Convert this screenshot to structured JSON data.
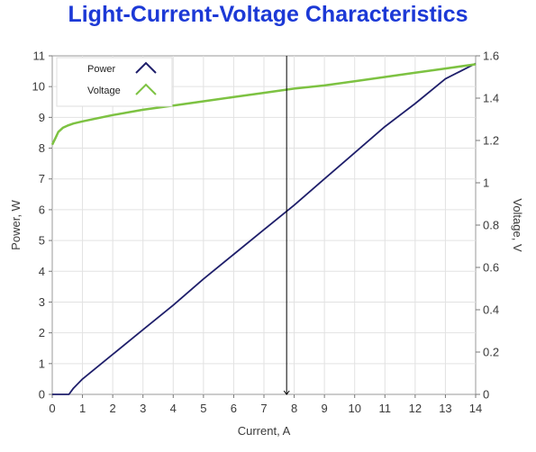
{
  "chart_data": {
    "type": "line",
    "title": "Light-Current-Voltage Characteristics",
    "xlabel": "Current, A",
    "ylabel": "Power, W",
    "y2label": "Voltage, V",
    "xlim": [
      0,
      14
    ],
    "ylim": [
      0,
      11
    ],
    "y2lim": [
      0,
      1.6
    ],
    "x_ticks": [
      "0",
      "1",
      "2",
      "3",
      "4",
      "5",
      "6",
      "7",
      "8",
      "9",
      "10",
      "11",
      "12",
      "13",
      "14"
    ],
    "y_ticks": [
      "0",
      "1",
      "2",
      "3",
      "4",
      "5",
      "6",
      "7",
      "8",
      "9",
      "10",
      "11"
    ],
    "y2_ticks": [
      "0",
      "0.2",
      "0.4",
      "0.6",
      "0.8",
      "1",
      "1.2",
      "1.4",
      "1.6"
    ],
    "grid": true,
    "legend_position": "top-left",
    "cursor_x": 7.75,
    "series": [
      {
        "name": "Power",
        "axis": "left",
        "color": "#1f1f6b",
        "x": [
          0,
          0.3,
          0.55,
          0.7,
          1,
          2,
          3,
          4,
          5,
          6,
          7,
          8,
          9,
          10,
          11,
          12,
          13,
          14
        ],
        "y": [
          0,
          0,
          0,
          0.2,
          0.5,
          1.3,
          2.1,
          2.9,
          3.75,
          4.55,
          5.35,
          6.15,
          7.0,
          7.85,
          8.7,
          9.45,
          10.25,
          10.75
        ]
      },
      {
        "name": "Voltage",
        "axis": "right",
        "color": "#7dc242",
        "x": [
          0,
          0.1,
          0.2,
          0.35,
          0.5,
          0.7,
          1,
          2,
          3,
          4,
          5,
          6,
          7,
          8,
          9,
          10,
          11,
          12,
          13,
          14
        ],
        "y": [
          1.18,
          1.21,
          1.24,
          1.26,
          1.27,
          1.28,
          1.29,
          1.32,
          1.345,
          1.365,
          1.385,
          1.405,
          1.425,
          1.445,
          1.46,
          1.48,
          1.5,
          1.52,
          1.54,
          1.56
        ]
      }
    ]
  }
}
